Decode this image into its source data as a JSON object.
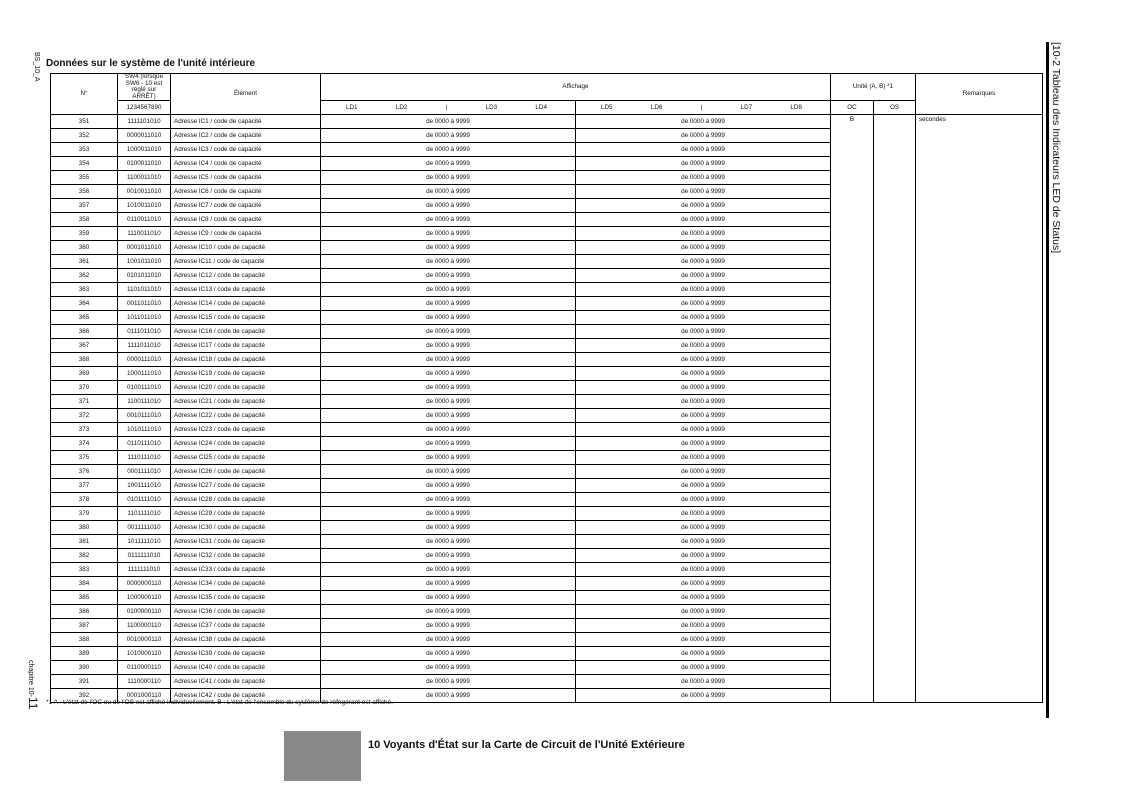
{
  "side": {
    "doc_code": "BS_10_A",
    "chapter_prefix": "chapitre 10-",
    "chapter_page": "11",
    "section_title": "[10-2 Tableau des Indicateurs LED de Status]"
  },
  "title": "Données sur le système de l'unité intérieure",
  "headers": {
    "no": "N°",
    "sw4": "SW4 (lorsque SW6 - 10 est réglé sur ARRÊT)",
    "sw4_bits": "1234567890",
    "element": "Élément",
    "display": "Affichage",
    "ld_left": [
      "LD1",
      "LD2",
      "|",
      "LD3",
      "LD4"
    ],
    "ld_right": [
      "LD5",
      "LD6",
      "|",
      "LD7",
      "LD8"
    ],
    "unit": "Unité (A, B) *1",
    "oc": "OC",
    "os": "OS",
    "remarks": "Remarques"
  },
  "unit_oc_value": "B",
  "unit_os_value": "",
  "remarks_value": "secondes",
  "rows": [
    {
      "no": "351",
      "sw4": "1111101010",
      "element": "Adresse IC1 / code de capacité",
      "left": "de 0000 à 9999",
      "right": "de 0000 à 9999"
    },
    {
      "no": "352",
      "sw4": "0000011010",
      "element": "Adresse IC2 / code de capacité",
      "left": "de 0000 à 9999",
      "right": "de 0000 à 9999"
    },
    {
      "no": "353",
      "sw4": "1000011010",
      "element": "Adresse IC3 / code de capacité",
      "left": "de 0000 à 9999",
      "right": "de 0000 à 9999"
    },
    {
      "no": "354",
      "sw4": "0100011010",
      "element": "Adresse IC4 / code de capacité",
      "left": "de 0000 à 9999",
      "right": "de 0000 à 9999"
    },
    {
      "no": "355",
      "sw4": "1100011010",
      "element": "Adresse IC5 / code de capacité",
      "left": "de 0000 à 9999",
      "right": "de 0000 à 9999"
    },
    {
      "no": "356",
      "sw4": "0010011010",
      "element": "Adresse IC6 / code de capacité",
      "left": "de 0000 à 9999",
      "right": "de 0000 à 9999"
    },
    {
      "no": "357",
      "sw4": "1010011010",
      "element": "Adresse IC7 / code de capacité",
      "left": "de 0000 à 9999",
      "right": "de 0000 à 9999"
    },
    {
      "no": "358",
      "sw4": "0110011010",
      "element": "Adresse IC8 / code de capacité",
      "left": "de 0000 à 9999",
      "right": "de 0000 à 9999"
    },
    {
      "no": "359",
      "sw4": "1110011010",
      "element": "Adresse IC9 / code de capacité",
      "left": "de 0000 à 9999",
      "right": "de 0000 à 9999"
    },
    {
      "no": "360",
      "sw4": "0001011010",
      "element": "Adresse IC10 / code de capacité",
      "left": "de 0000 à 9999",
      "right": "de 0000 à 9999"
    },
    {
      "no": "361",
      "sw4": "1001011010",
      "element": "Adresse IC11 / code de capacité",
      "left": "de 0000 à 9999",
      "right": "de 0000 à 9999"
    },
    {
      "no": "362",
      "sw4": "0101011010",
      "element": "Adresse IC12 / code de capacité",
      "left": "de 0000 à 9999",
      "right": "de 0000 à 9999"
    },
    {
      "no": "363",
      "sw4": "1101011010",
      "element": "Adresse IC13 / code de capacité",
      "left": "de 0000 à 9999",
      "right": "de 0000 à 9999"
    },
    {
      "no": "364",
      "sw4": "0011011010",
      "element": "Adresse IC14 / code de capacité",
      "left": "de 0000 à 9999",
      "right": "de 0000 à 9999"
    },
    {
      "no": "365",
      "sw4": "1011011010",
      "element": "Adresse IC15 / code de capacité",
      "left": "de 0000 à 9999",
      "right": "de 0000 à 9999"
    },
    {
      "no": "366",
      "sw4": "0111011010",
      "element": "Adresse IC16 / code de capacité",
      "left": "de 0000 à 9999",
      "right": "de 0000 à 9999"
    },
    {
      "no": "367",
      "sw4": "1111011010",
      "element": "Adresse IC17 / code de capacité",
      "left": "de 0000 à 9999",
      "right": "de 0000 à 9999"
    },
    {
      "no": "368",
      "sw4": "0000111010",
      "element": "Adresse IC18 / code de capacité",
      "left": "de 0000 à 9999",
      "right": "de 0000 à 9999"
    },
    {
      "no": "369",
      "sw4": "1000111010",
      "element": "Adresse IC19 / code de capacité",
      "left": "de 0000 à 9999",
      "right": "de 0000 à 9999"
    },
    {
      "no": "370",
      "sw4": "0100111010",
      "element": "Adresse IC20 / code de capacité",
      "left": "de 0000 à 9999",
      "right": "de 0000 à 9999"
    },
    {
      "no": "371",
      "sw4": "1100111010",
      "element": "Adresse IC21 / code de capacité",
      "left": "de 0000 à 9999",
      "right": "de 0000 à 9999"
    },
    {
      "no": "372",
      "sw4": "0010111010",
      "element": "Adresse IC22 / code de capacité",
      "left": "de 0000 à 9999",
      "right": "de 0000 à 9999"
    },
    {
      "no": "373",
      "sw4": "1010111010",
      "element": "Adresse IC23 / code de capacité",
      "left": "de 0000 à 9999",
      "right": "de 0000 à 9999"
    },
    {
      "no": "374",
      "sw4": "0110111010",
      "element": "Adresse IC24 / code de capacité",
      "left": "de 0000 à 9999",
      "right": "de 0000 à 9999"
    },
    {
      "no": "375",
      "sw4": "1110111010",
      "element": "Adresse CI25 / code de capacité",
      "left": "de 0000 à 9999",
      "right": "de 0000 à 9999"
    },
    {
      "no": "376",
      "sw4": "0001111010",
      "element": "Adresse IC26 / code de capacité",
      "left": "de 0000 à 9999",
      "right": "de 0000 à 9999"
    },
    {
      "no": "377",
      "sw4": "1001111010",
      "element": "Adresse IC27 / code de capacité",
      "left": "de 0000 à 9999",
      "right": "de 0000 à 9999"
    },
    {
      "no": "378",
      "sw4": "0101111010",
      "element": "Adresse IC28 / code de capacité",
      "left": "de 0000 à 9999",
      "right": "de 0000 à 9999"
    },
    {
      "no": "379",
      "sw4": "1101111010",
      "element": "Adresse IC29 / code de capacité",
      "left": "de 0000 à 9999",
      "right": "de 0000 à 9999"
    },
    {
      "no": "380",
      "sw4": "0011111010",
      "element": "Adresse IC30 / code de capacité",
      "left": "de 0000 à 9999",
      "right": "de 0000 à 9999"
    },
    {
      "no": "381",
      "sw4": "1011111010",
      "element": "Adresse IC31 / code de capacité",
      "left": "de 0000 à 9999",
      "right": "de 0000 à 9999"
    },
    {
      "no": "382",
      "sw4": "0111111010",
      "element": "Adresse IC32 / code de capacité",
      "left": "de 0000 à 9999",
      "right": "de 0000 à 9999"
    },
    {
      "no": "383",
      "sw4": "1111111010",
      "element": "Adresse IC33 / code de capacité",
      "left": "de 0000 à 9999",
      "right": "de 0000 à 9999"
    },
    {
      "no": "384",
      "sw4": "0000000110",
      "element": "Adresse IC34 / code de capacité",
      "left": "de 0000 à 9999",
      "right": "de 0000 à 9999"
    },
    {
      "no": "385",
      "sw4": "1000000110",
      "element": "Adresse IC35 / code de capacité",
      "left": "de 0000 à 9999",
      "right": "de 0000 à 9999"
    },
    {
      "no": "386",
      "sw4": "0100000110",
      "element": "Adresse IC36 / code de capacité",
      "left": "de 0000 à 9999",
      "right": "de 0000 à 9999"
    },
    {
      "no": "387",
      "sw4": "1100000110",
      "element": "Adresse IC37 / code de capacité",
      "left": "de 0000 à 9999",
      "right": "de 0000 à 9999"
    },
    {
      "no": "388",
      "sw4": "0010000110",
      "element": "Adresse IC38 / code de capacité",
      "left": "de 0000 à 9999",
      "right": "de 0000 à 9999"
    },
    {
      "no": "389",
      "sw4": "1010000110",
      "element": "Adresse IC39 / code de capacité",
      "left": "de 0000 à 9999",
      "right": "de 0000 à 9999"
    },
    {
      "no": "390",
      "sw4": "0110000110",
      "element": "Adresse IC40 / code de capacité",
      "left": "de 0000 à 9999",
      "right": "de 0000 à 9999"
    },
    {
      "no": "391",
      "sw4": "1110000110",
      "element": "Adresse IC41 / code de capacité",
      "left": "de 0000 à 9999",
      "right": "de 0000 à 9999"
    },
    {
      "no": "392",
      "sw4": "0001000110",
      "element": "Adresse IC42 / code de capacité",
      "left": "de 0000 à 9999",
      "right": "de 0000 à 9999"
    }
  ],
  "footnote": "*1 A : L'état de l'OC ou de l'OS est affiché individuellement. B : L'état de l'ensemble du système de réfrigérant est affiché.",
  "next_section_title": "10 Voyants d'État sur la Carte de Circuit de l'Unité Extérieure",
  "colors": {
    "next_section_box": "#888888"
  }
}
